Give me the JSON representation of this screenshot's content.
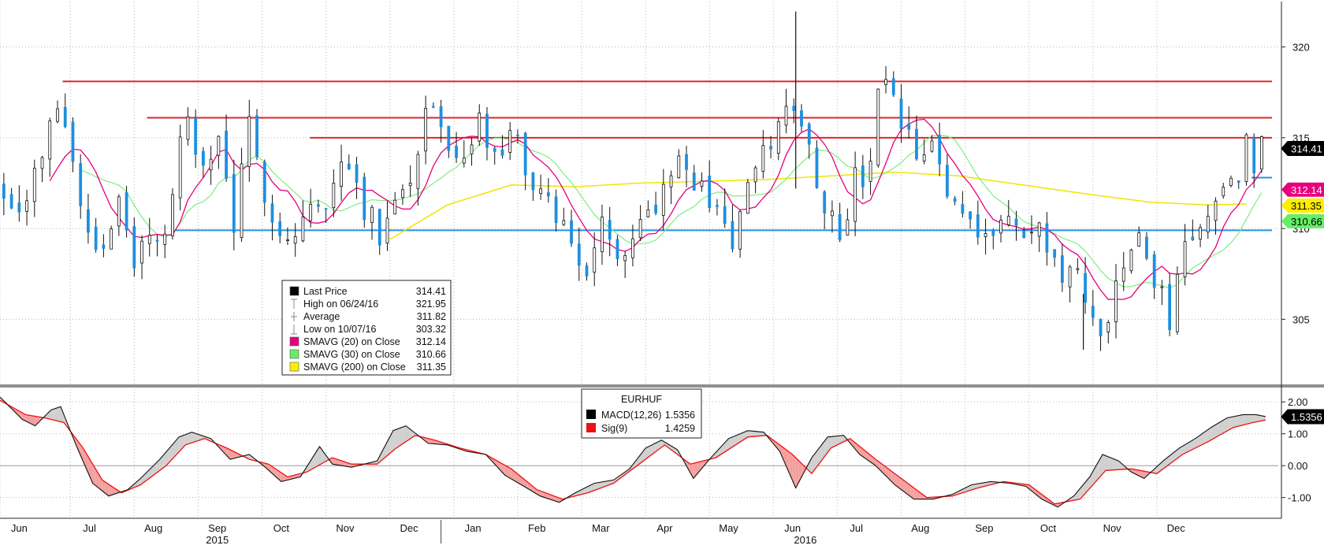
{
  "chart_data": [
    {
      "type": "candlestick",
      "instrument": "EURHUF",
      "ylim": [
        301.5,
        322.5
      ],
      "y_ticks": [
        305,
        310,
        315,
        320
      ],
      "months": [
        {
          "label": "Jun",
          "t": 0.3
        },
        {
          "label": "Jul",
          "t": 1.4
        },
        {
          "label": "Aug",
          "t": 2.4
        },
        {
          "label": "Sep",
          "t": 3.4
        },
        {
          "label": "Oct",
          "t": 4.4
        },
        {
          "label": "Nov",
          "t": 5.4
        },
        {
          "label": "Dec",
          "t": 6.4
        },
        {
          "label": "Jan",
          "t": 7.4
        },
        {
          "label": "Feb",
          "t": 8.4
        },
        {
          "label": "Mar",
          "t": 9.4
        },
        {
          "label": "Apr",
          "t": 10.4
        },
        {
          "label": "May",
          "t": 11.4
        },
        {
          "label": "Jun",
          "t": 12.4
        },
        {
          "label": "Jul",
          "t": 13.4
        },
        {
          "label": "Aug",
          "t": 14.4
        },
        {
          "label": "Sep",
          "t": 15.4
        },
        {
          "label": "Oct",
          "t": 16.4
        },
        {
          "label": "Nov",
          "t": 17.4
        },
        {
          "label": "Dec",
          "t": 18.4
        }
      ],
      "years": [
        {
          "label": "2015",
          "t": 3.4
        },
        {
          "label": "2016",
          "t": 12.6
        }
      ],
      "year_divider_t": 6.9,
      "price_path": [
        [
          0.0,
          312.2
        ],
        [
          0.4,
          311.4
        ],
        [
          0.8,
          315.6
        ],
        [
          0.95,
          318.0
        ],
        [
          1.1,
          314.2
        ],
        [
          1.3,
          310.8
        ],
        [
          1.55,
          308.6
        ],
        [
          1.85,
          311.6
        ],
        [
          2.1,
          307.6
        ],
        [
          2.35,
          310.2
        ],
        [
          2.6,
          309.2
        ],
        [
          2.75,
          313.4
        ],
        [
          2.95,
          316.4
        ],
        [
          3.2,
          312.6
        ],
        [
          3.45,
          315.3
        ],
        [
          3.65,
          309.9
        ],
        [
          3.75,
          312.2
        ],
        [
          3.9,
          315.4
        ],
        [
          4.1,
          312.6
        ],
        [
          4.3,
          310.6
        ],
        [
          4.55,
          309.0
        ],
        [
          4.8,
          311.3
        ],
        [
          5.1,
          310.8
        ],
        [
          5.4,
          314.8
        ],
        [
          5.65,
          311.6
        ],
        [
          5.95,
          309.6
        ],
        [
          6.15,
          312.3
        ],
        [
          6.4,
          312.0
        ],
        [
          6.55,
          314.9
        ],
        [
          6.75,
          317.8
        ],
        [
          6.95,
          314.0
        ],
        [
          7.25,
          313.0
        ],
        [
          7.5,
          316.0
        ],
        [
          7.75,
          313.6
        ],
        [
          8.1,
          315.4
        ],
        [
          8.35,
          311.2
        ],
        [
          8.6,
          312.1
        ],
        [
          8.85,
          309.6
        ],
        [
          9.2,
          307.6
        ],
        [
          9.45,
          310.2
        ],
        [
          9.7,
          308.6
        ],
        [
          9.95,
          310.6
        ],
        [
          10.2,
          310.9
        ],
        [
          10.6,
          314.6
        ],
        [
          10.8,
          312.4
        ],
        [
          11.0,
          312.0
        ],
        [
          11.2,
          311.4
        ],
        [
          11.45,
          309.2
        ],
        [
          11.7,
          312.0
        ],
        [
          11.9,
          313.6
        ],
        [
          12.2,
          315.8
        ],
        [
          12.45,
          317.3
        ],
        [
          12.7,
          313.8
        ],
        [
          12.95,
          311.0
        ],
        [
          13.15,
          309.8
        ],
        [
          13.4,
          312.8
        ],
        [
          13.6,
          312.4
        ],
        [
          13.75,
          318.2
        ],
        [
          13.95,
          317.0
        ],
        [
          14.15,
          315.2
        ],
        [
          14.4,
          313.6
        ],
        [
          14.6,
          314.6
        ],
        [
          14.8,
          312.0
        ],
        [
          15.05,
          311.2
        ],
        [
          15.3,
          310.2
        ],
        [
          15.55,
          309.8
        ],
        [
          15.8,
          310.6
        ],
        [
          16.0,
          309.4
        ],
        [
          16.2,
          309.8
        ],
        [
          16.4,
          309.2
        ],
        [
          16.6,
          307.2
        ],
        [
          16.8,
          307.6
        ],
        [
          17.05,
          305.2
        ],
        [
          17.25,
          304.6
        ],
        [
          17.45,
          306.2
        ],
        [
          17.65,
          308.8
        ],
        [
          17.85,
          309.6
        ],
        [
          18.1,
          306.6
        ],
        [
          18.3,
          305.2
        ],
        [
          18.5,
          308.6
        ],
        [
          18.75,
          310.6
        ],
        [
          18.95,
          309.8
        ],
        [
          19.15,
          313.2
        ],
        [
          19.35,
          312.0
        ],
        [
          19.5,
          314.6
        ],
        [
          19.62,
          313.8
        ],
        [
          19.75,
          314.9
        ],
        [
          19.85,
          314.4
        ]
      ],
      "h_lines": [
        {
          "price": 318.1,
          "from_t": 0.98,
          "color": "#e0242c"
        },
        {
          "price": 316.1,
          "from_t": 2.3,
          "color": "#e0242c"
        },
        {
          "price": 315.0,
          "from_t": 4.85,
          "color": "#e0242c"
        },
        {
          "price": 309.9,
          "from_t": 2.75,
          "color": "#2a8fdc"
        },
        {
          "price": 312.8,
          "from_t": 19.58,
          "color": "#2a8fdc"
        }
      ],
      "spikes": [
        {
          "t": 12.45,
          "low": 312.2,
          "high": 321.95
        },
        {
          "t": 16.95,
          "low": 303.32,
          "high": 306.4
        }
      ],
      "sma200_path": [
        [
          6.1,
          309.4
        ],
        [
          7.0,
          311.3
        ],
        [
          8.0,
          312.4
        ],
        [
          9.0,
          312.3
        ],
        [
          10.0,
          312.5
        ],
        [
          11.0,
          312.6
        ],
        [
          12.0,
          312.7
        ],
        [
          13.0,
          312.9
        ],
        [
          14.0,
          313.1
        ],
        [
          15.0,
          312.9
        ],
        [
          16.0,
          312.4
        ],
        [
          17.0,
          311.9
        ],
        [
          18.0,
          311.45
        ],
        [
          18.9,
          311.3
        ],
        [
          19.5,
          311.35
        ]
      ],
      "legend": [
        {
          "swatch": "#000000",
          "label": "Last Price",
          "value": "314.41",
          "marker": "box"
        },
        {
          "swatch": "#888888",
          "label": "High on 06/24/16",
          "value": "321.95",
          "marker": "tee-top"
        },
        {
          "swatch": "#888888",
          "label": "Average",
          "value": "311.82",
          "marker": "plus"
        },
        {
          "swatch": "#888888",
          "label": "Low on 10/07/16",
          "value": "303.32",
          "marker": "tee-bottom"
        },
        {
          "swatch": "#e6007e",
          "label": "SMAVG (20) on Close",
          "value": "312.14",
          "marker": "box"
        },
        {
          "swatch": "#66ee66",
          "label": "SMAVG (30) on Close",
          "value": "310.66",
          "marker": "box"
        },
        {
          "swatch": "#ffee00",
          "label": "SMAVG (200) on Close",
          "value": "311.35",
          "marker": "box"
        }
      ],
      "value_tags": [
        {
          "value": "314.41",
          "price": 314.41,
          "bg": "#000000",
          "fg": "#ffffff"
        },
        {
          "value": "312.14",
          "price": 312.14,
          "bg": "#e6007e",
          "fg": "#ffffff"
        },
        {
          "value": "311.35",
          "price": 311.35,
          "bg": "#ffee00",
          "fg": "#000000"
        },
        {
          "value": "310.66",
          "price": 310.66,
          "bg": "#66ee66",
          "fg": "#000000"
        }
      ]
    },
    {
      "type": "line",
      "title": "EURHUF",
      "ylim": [
        -1.65,
        2.45
      ],
      "y_ticks": [
        "2.00",
        "1.00",
        "0.00",
        "-1.00"
      ],
      "y_tick_values": [
        2.0,
        1.0,
        0.0,
        -1.0
      ],
      "zero_line": 0,
      "series": [
        {
          "name": "MACD(12,26)",
          "value": "1.5356",
          "color": "#111111"
        },
        {
          "name": "Sig(9)",
          "value": "1.4259",
          "color": "#ee1111"
        }
      ],
      "macd_path": [
        [
          0.0,
          2.15
        ],
        [
          0.35,
          1.45
        ],
        [
          0.55,
          1.25
        ],
        [
          0.8,
          1.75
        ],
        [
          0.95,
          1.85
        ],
        [
          1.2,
          0.6
        ],
        [
          1.45,
          -0.55
        ],
        [
          1.7,
          -0.95
        ],
        [
          2.0,
          -0.75
        ],
        [
          2.2,
          -0.4
        ],
        [
          2.5,
          0.2
        ],
        [
          2.8,
          0.9
        ],
        [
          3.0,
          1.05
        ],
        [
          3.3,
          0.85
        ],
        [
          3.6,
          0.2
        ],
        [
          3.9,
          0.35
        ],
        [
          4.15,
          -0.05
        ],
        [
          4.4,
          -0.5
        ],
        [
          4.7,
          -0.35
        ],
        [
          5.0,
          0.6
        ],
        [
          5.2,
          0.05
        ],
        [
          5.5,
          -0.05
        ],
        [
          5.9,
          0.15
        ],
        [
          6.15,
          1.1
        ],
        [
          6.35,
          1.25
        ],
        [
          6.7,
          0.7
        ],
        [
          7.0,
          0.65
        ],
        [
          7.3,
          0.45
        ],
        [
          7.6,
          0.35
        ],
        [
          7.9,
          -0.3
        ],
        [
          8.2,
          -0.65
        ],
        [
          8.45,
          -0.95
        ],
        [
          8.75,
          -1.15
        ],
        [
          9.0,
          -0.85
        ],
        [
          9.3,
          -0.55
        ],
        [
          9.6,
          -0.45
        ],
        [
          9.85,
          -0.1
        ],
        [
          10.1,
          0.55
        ],
        [
          10.35,
          0.8
        ],
        [
          10.6,
          0.5
        ],
        [
          10.85,
          -0.4
        ],
        [
          11.1,
          0.2
        ],
        [
          11.4,
          0.85
        ],
        [
          11.7,
          1.1
        ],
        [
          11.95,
          1.05
        ],
        [
          12.2,
          0.45
        ],
        [
          12.45,
          -0.7
        ],
        [
          12.7,
          0.25
        ],
        [
          12.95,
          0.9
        ],
        [
          13.2,
          0.95
        ],
        [
          13.45,
          0.35
        ],
        [
          13.7,
          0.0
        ],
        [
          14.0,
          -0.6
        ],
        [
          14.3,
          -1.05
        ],
        [
          14.6,
          -1.05
        ],
        [
          14.9,
          -0.9
        ],
        [
          15.2,
          -0.6
        ],
        [
          15.5,
          -0.5
        ],
        [
          15.8,
          -0.55
        ],
        [
          16.05,
          -0.65
        ],
        [
          16.3,
          -1.05
        ],
        [
          16.55,
          -1.3
        ],
        [
          16.8,
          -0.95
        ],
        [
          17.05,
          -0.35
        ],
        [
          17.25,
          0.35
        ],
        [
          17.5,
          0.15
        ],
        [
          17.7,
          -0.2
        ],
        [
          17.9,
          -0.4
        ],
        [
          18.2,
          0.15
        ],
        [
          18.45,
          0.55
        ],
        [
          18.7,
          0.85
        ],
        [
          18.95,
          1.2
        ],
        [
          19.2,
          1.5
        ],
        [
          19.45,
          1.6
        ],
        [
          19.65,
          1.6
        ],
        [
          19.8,
          1.54
        ]
      ],
      "signal_path": [
        [
          0.0,
          2.05
        ],
        [
          0.4,
          1.6
        ],
        [
          0.7,
          1.5
        ],
        [
          1.0,
          1.35
        ],
        [
          1.3,
          0.55
        ],
        [
          1.6,
          -0.45
        ],
        [
          1.9,
          -0.85
        ],
        [
          2.2,
          -0.6
        ],
        [
          2.6,
          0.0
        ],
        [
          2.9,
          0.65
        ],
        [
          3.2,
          0.85
        ],
        [
          3.55,
          0.55
        ],
        [
          3.9,
          0.2
        ],
        [
          4.2,
          0.05
        ],
        [
          4.5,
          -0.35
        ],
        [
          4.8,
          -0.2
        ],
        [
          5.2,
          0.25
        ],
        [
          5.5,
          0.05
        ],
        [
          5.9,
          0.05
        ],
        [
          6.2,
          0.55
        ],
        [
          6.5,
          0.95
        ],
        [
          6.8,
          0.8
        ],
        [
          7.2,
          0.55
        ],
        [
          7.6,
          0.35
        ],
        [
          8.0,
          -0.1
        ],
        [
          8.4,
          -0.75
        ],
        [
          8.8,
          -1.05
        ],
        [
          9.2,
          -0.85
        ],
        [
          9.6,
          -0.55
        ],
        [
          10.0,
          0.05
        ],
        [
          10.4,
          0.65
        ],
        [
          10.8,
          0.05
        ],
        [
          11.2,
          0.25
        ],
        [
          11.7,
          0.9
        ],
        [
          12.0,
          0.95
        ],
        [
          12.4,
          0.35
        ],
        [
          12.7,
          -0.25
        ],
        [
          13.0,
          0.55
        ],
        [
          13.3,
          0.85
        ],
        [
          13.7,
          0.2
        ],
        [
          14.1,
          -0.4
        ],
        [
          14.5,
          -1.0
        ],
        [
          14.9,
          -0.95
        ],
        [
          15.3,
          -0.7
        ],
        [
          15.7,
          -0.5
        ],
        [
          16.1,
          -0.6
        ],
        [
          16.5,
          -1.2
        ],
        [
          16.9,
          -1.05
        ],
        [
          17.3,
          -0.15
        ],
        [
          17.7,
          -0.1
        ],
        [
          18.1,
          -0.25
        ],
        [
          18.5,
          0.35
        ],
        [
          18.9,
          0.75
        ],
        [
          19.3,
          1.2
        ],
        [
          19.6,
          1.35
        ],
        [
          19.8,
          1.43
        ]
      ],
      "value_tags": [
        {
          "value": "1.5356",
          "level": 1.5356,
          "bg": "#000000",
          "fg": "#ffffff"
        }
      ]
    }
  ]
}
